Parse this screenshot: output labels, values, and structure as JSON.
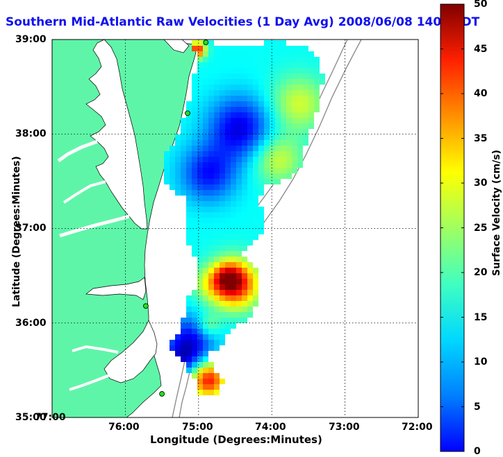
{
  "title": "Southern Mid-Atlantic Raw Velocities (1 Day Avg) 2008/06/08 1400 EDT",
  "axes": {
    "xlabel": "Longitude (Degrees:Minutes)",
    "ylabel": "Latitude (Degrees:Minutes)",
    "x_ticks": [
      "77:00",
      "76:00",
      "75:00",
      "74:00",
      "73:00",
      "72:00"
    ],
    "y_ticks": [
      "39:00",
      "38:00",
      "37:00",
      "36:00",
      "35:00"
    ],
    "x_range": [
      -77,
      -72
    ],
    "y_range": [
      35,
      39
    ],
    "grid": "dotted"
  },
  "colorbar": {
    "label": "Surface Velocity (cm/s)",
    "ticks": [
      "0",
      "5",
      "10",
      "15",
      "20",
      "25",
      "30",
      "35",
      "40",
      "45",
      "50"
    ],
    "min": 0,
    "max": 50,
    "colormap": "jet"
  },
  "colors": {
    "land": "#5ff5a8",
    "title": "#1010ee",
    "coastline": "#000000",
    "bathymetry": "#8c8c8c",
    "station": "#22dd22"
  },
  "stations": [
    {
      "lon": -74.9,
      "lat": 38.97
    },
    {
      "lon": -75.15,
      "lat": 38.22
    },
    {
      "lon": -75.72,
      "lat": 36.18
    },
    {
      "lon": -75.5,
      "lat": 35.25
    }
  ]
}
